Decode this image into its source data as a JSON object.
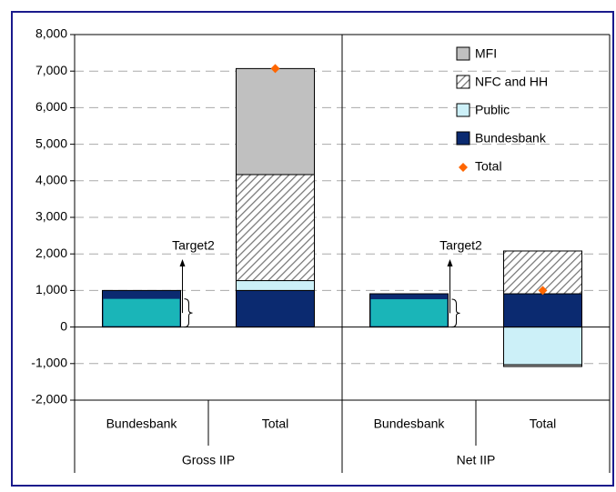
{
  "chart_data": {
    "type": "stacked_bar",
    "categories": [
      "Bundesbank",
      "Total",
      "Bundesbank",
      "Total"
    ],
    "groups": [
      "Gross IIP",
      "Net IIP"
    ],
    "series": [
      {
        "name": "MFI",
        "color": "#c0c0c0",
        "values": [
          null,
          2900,
          null,
          -50
        ]
      },
      {
        "name": "NFC and HH",
        "color": "hatch",
        "values": [
          null,
          2900,
          null,
          1170
        ]
      },
      {
        "name": "Public",
        "color": "#ccf0f8",
        "values": [
          null,
          270,
          null,
          -1030
        ]
      },
      {
        "name": "Bundesbank",
        "color": "#0b2a70",
        "values": [
          1000,
          1000,
          910,
          910
        ]
      }
    ],
    "total": {
      "name": "Total",
      "color": "#ff6600",
      "values": [
        null,
        7070,
        null,
        1000
      ]
    },
    "target2": {
      "label": "Target2",
      "color": "#1ab5b8",
      "values": [
        770,
        null,
        760,
        null
      ]
    },
    "ylim": [
      -2000,
      8000
    ],
    "yticks": [
      {
        "value": -2000,
        "label": "-2,000"
      },
      {
        "value": -1000,
        "label": "-1,000"
      },
      0,
      {
        "value": 1000,
        "label": "1,000"
      },
      {
        "value": 2000,
        "label": "2,000"
      },
      {
        "value": 3000,
        "label": "3,000"
      },
      {
        "value": 4000,
        "label": "4,000"
      },
      {
        "value": 5000,
        "label": "5,000"
      },
      {
        "value": 6000,
        "label": "6,000"
      },
      {
        "value": 7000,
        "label": "7,000"
      },
      {
        "value": 8000,
        "label": "8,000"
      }
    ],
    "grid": true
  }
}
